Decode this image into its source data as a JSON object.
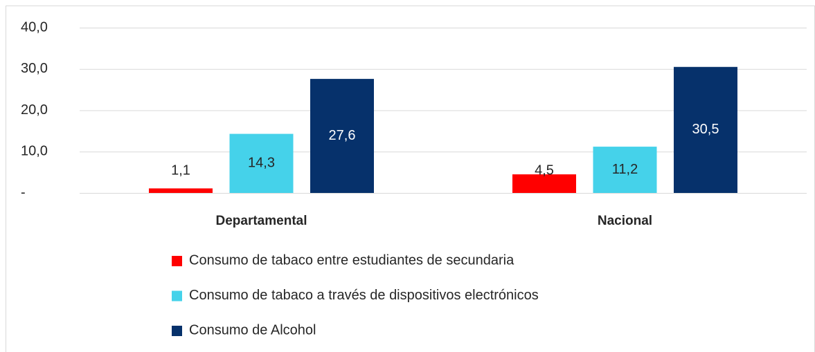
{
  "chart_data": {
    "type": "bar",
    "categories": [
      "Departamental",
      "Nacional"
    ],
    "series": [
      {
        "name": "Consumo de tabaco entre estudiantes de secundaria",
        "color": "#ff0000",
        "values": [
          1.1,
          4.5
        ],
        "value_labels": [
          "1,1",
          "4,5"
        ]
      },
      {
        "name": "Consumo de tabaco a través de dispositivos electrónicos",
        "color": "#45d2ea",
        "values": [
          14.3,
          11.2
        ],
        "value_labels": [
          "14,3",
          "11,2"
        ]
      },
      {
        "name": "Consumo de Alcohol",
        "color": "#06316b",
        "values": [
          27.6,
          30.5
        ],
        "value_labels": [
          "27,6",
          "30,5"
        ]
      }
    ],
    "ylim": [
      0,
      40
    ],
    "yticks": [
      {
        "value": 0,
        "label": "-"
      },
      {
        "value": 10,
        "label": "10,0"
      },
      {
        "value": 20,
        "label": "20,0"
      },
      {
        "value": 30,
        "label": "30,0"
      },
      {
        "value": 40,
        "label": "40,0"
      }
    ],
    "grid": true,
    "legend": "bottom"
  }
}
